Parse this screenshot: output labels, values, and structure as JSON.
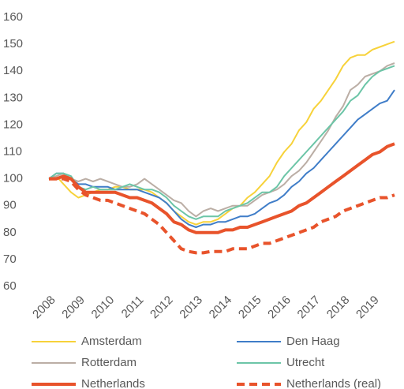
{
  "chart_data": {
    "type": "line",
    "categories": [
      "2008",
      null,
      null,
      null,
      "2009",
      null,
      null,
      null,
      "2010",
      null,
      null,
      null,
      "2011",
      null,
      null,
      null,
      "2012",
      null,
      null,
      null,
      "2013",
      null,
      null,
      null,
      "2014",
      null,
      null,
      null,
      "2015",
      null,
      null,
      null,
      "2016",
      null,
      null,
      null,
      "2017",
      null,
      null,
      null,
      "2018",
      null,
      null,
      null,
      "2019",
      null,
      null,
      null
    ],
    "ylim": [
      60,
      160
    ],
    "yticks": [
      60,
      70,
      80,
      90,
      100,
      110,
      120,
      130,
      140,
      150,
      160
    ],
    "legend": "bottom",
    "series": [
      {
        "name": "Amsterdam",
        "color": "#f7d23a",
        "width": 2,
        "dash": false,
        "values": [
          100,
          101,
          98,
          95,
          93,
          94,
          95,
          96,
          96,
          97,
          97,
          96,
          96,
          96,
          95,
          93,
          91,
          88,
          86,
          84,
          83,
          84,
          84,
          85,
          87,
          89,
          90,
          93,
          95,
          98,
          101,
          106,
          110,
          113,
          118,
          121,
          126,
          129,
          133,
          137,
          142,
          145,
          146,
          146,
          148,
          149,
          150,
          151
        ]
      },
      {
        "name": "Den Haag",
        "color": "#3f7dc8",
        "width": 2,
        "dash": false,
        "values": [
          100,
          102,
          102,
          100,
          98,
          98,
          97,
          97,
          97,
          96,
          96,
          96,
          96,
          95,
          94,
          93,
          91,
          88,
          85,
          83,
          82,
          83,
          83,
          84,
          84,
          85,
          86,
          86,
          87,
          89,
          91,
          92,
          94,
          97,
          99,
          102,
          104,
          107,
          110,
          113,
          116,
          119,
          122,
          124,
          126,
          128,
          129,
          133
        ]
      },
      {
        "name": "Rotterdam",
        "color": "#bbaea5",
        "width": 2,
        "dash": false,
        "values": [
          100,
          101,
          102,
          100,
          99,
          100,
          99,
          100,
          99,
          98,
          97,
          97,
          98,
          100,
          98,
          96,
          94,
          92,
          91,
          88,
          86,
          88,
          89,
          88,
          89,
          90,
          90,
          90,
          92,
          94,
          95,
          96,
          98,
          101,
          103,
          106,
          110,
          114,
          118,
          123,
          127,
          133,
          135,
          138,
          139,
          140,
          142,
          143
        ]
      },
      {
        "name": "Utrecht",
        "color": "#6cc5a7",
        "width": 2,
        "dash": false,
        "values": [
          100,
          102,
          102,
          101,
          97,
          96,
          97,
          96,
          96,
          96,
          97,
          98,
          97,
          96,
          96,
          95,
          93,
          90,
          88,
          86,
          85,
          86,
          86,
          86,
          88,
          89,
          90,
          91,
          93,
          95,
          95,
          97,
          101,
          104,
          107,
          110,
          113,
          116,
          119,
          122,
          125,
          129,
          131,
          135,
          138,
          140,
          141,
          142
        ]
      },
      {
        "name": "Netherlands",
        "color": "#e8532b",
        "width": 4,
        "dash": false,
        "values": [
          100,
          100,
          101,
          100,
          97,
          95,
          95,
          95,
          95,
          95,
          94,
          93,
          93,
          92,
          91,
          89,
          87,
          84,
          83,
          81,
          80,
          80,
          80,
          80,
          81,
          81,
          82,
          82,
          83,
          84,
          85,
          86,
          87,
          88,
          90,
          91,
          93,
          95,
          97,
          99,
          101,
          103,
          105,
          107,
          109,
          110,
          112,
          113
        ]
      },
      {
        "name": "Netherlands (real)",
        "color": "#e8532b",
        "width": 4,
        "dash": true,
        "values": [
          100,
          100,
          100,
          99,
          96,
          94,
          93,
          92,
          92,
          91,
          90,
          89,
          88,
          87,
          85,
          83,
          80,
          77,
          74,
          73,
          72.5,
          72.5,
          73,
          73,
          73,
          74,
          74,
          74,
          75,
          76,
          76,
          77,
          78,
          79,
          80,
          81,
          82,
          84,
          85,
          86,
          88,
          89,
          90,
          91,
          92,
          93,
          93,
          94
        ]
      }
    ]
  }
}
